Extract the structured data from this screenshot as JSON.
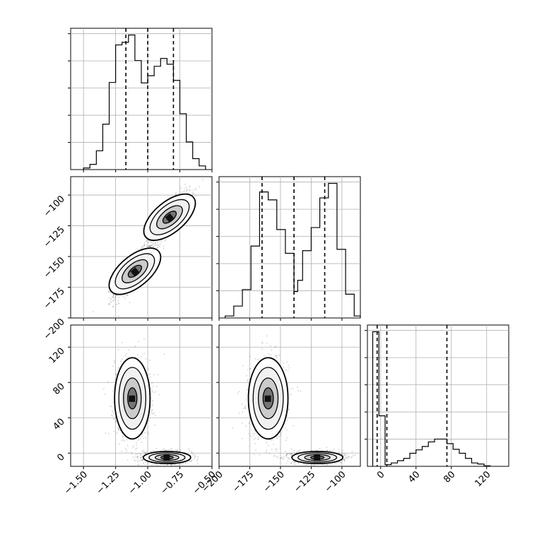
{
  "chart_data": [
    {
      "type": "histogram",
      "panel": "diag-1",
      "xlim": [
        -1.6,
        -0.5
      ],
      "x_ticks": [
        -1.5,
        -1.25,
        -1.0,
        -0.75,
        -0.5
      ],
      "quantile_lines": [
        -1.17,
        -1.0,
        -0.8
      ],
      "bin_edges": [
        -1.5,
        -1.45,
        -1.4,
        -1.35,
        -1.3,
        -1.25,
        -1.2,
        -1.15,
        -1.1,
        -1.05,
        -1.0,
        -0.95,
        -0.9,
        -0.85,
        -0.8,
        -0.75,
        -0.7,
        -0.65,
        -0.6,
        -0.55
      ],
      "counts": [
        3,
        10,
        36,
        87,
        167,
        239,
        244,
        258,
        209,
        166,
        180,
        198,
        213,
        202,
        171,
        107,
        53,
        21,
        7
      ]
    },
    {
      "type": "histogram",
      "panel": "diag-2",
      "xlim": [
        -200,
        -85
      ],
      "x_ticks": [
        -200,
        -175,
        -150,
        -125,
        -100
      ],
      "quantile_lines": [
        -165,
        -139,
        -114
      ],
      "bin_edges": [
        -195,
        -188,
        -181,
        -174,
        -167,
        -160,
        -153,
        -146,
        -139,
        -136,
        -132,
        -125,
        -118,
        -111,
        -104,
        -97,
        -90,
        -85
      ],
      "counts": [
        3,
        18,
        43,
        109,
        191,
        179,
        134,
        98,
        40,
        57,
        102,
        137,
        182,
        204,
        104,
        36,
        3
      ]
    },
    {
      "type": "histogram",
      "panel": "diag-3",
      "xlim": [
        -15,
        145
      ],
      "x_ticks": [
        0,
        40,
        80,
        120
      ],
      "quantile_lines": [
        -4,
        7,
        75
      ],
      "bin_edges": [
        -9,
        -2,
        5,
        12,
        19,
        26,
        33,
        40,
        47,
        54,
        61,
        68,
        75,
        82,
        89,
        96,
        103,
        110,
        117,
        124
      ],
      "counts": [
        237,
        89,
        3,
        6,
        10,
        14,
        23,
        29,
        35,
        43,
        48,
        48,
        40,
        30,
        23,
        14,
        6,
        4,
        1
      ]
    },
    {
      "type": "scatter",
      "panel": "lower-21",
      "x_param": 1,
      "y_param": 2,
      "xlim": [
        -1.6,
        -0.5
      ],
      "ylim": [
        -200,
        -85
      ],
      "y_ticks": [
        -100,
        -125,
        -150,
        -175,
        -200
      ],
      "clusters": [
        {
          "center": [
            -1.1,
            -162
          ],
          "spread": [
            0.07,
            9
          ]
        },
        {
          "center": [
            -0.83,
            -118
          ],
          "spread": [
            0.07,
            9
          ]
        }
      ]
    },
    {
      "type": "scatter",
      "panel": "lower-31",
      "x_param": 1,
      "y_param": 3,
      "xlim": [
        -1.6,
        -0.5
      ],
      "ylim": [
        -15,
        145
      ],
      "y_ticks": [
        0,
        40,
        80,
        120
      ],
      "x_ticks": [
        -1.5,
        -1.25,
        -1.0,
        -0.75,
        -0.5
      ],
      "clusters": [
        {
          "center": [
            -1.12,
            62
          ],
          "spread": [
            0.06,
            20
          ]
        },
        {
          "center": [
            -0.85,
            -5
          ],
          "spread": [
            0.08,
            3
          ]
        }
      ]
    },
    {
      "type": "scatter",
      "panel": "lower-32",
      "x_param": 2,
      "y_param": 3,
      "xlim": [
        -200,
        -85
      ],
      "ylim": [
        -15,
        145
      ],
      "x_ticks": [
        -200,
        -175,
        -150,
        -125,
        -100
      ],
      "clusters": [
        {
          "center": [
            -160,
            62
          ],
          "spread": [
            7,
            20
          ]
        },
        {
          "center": [
            -120,
            -5
          ],
          "spread": [
            9,
            3
          ]
        }
      ]
    }
  ],
  "axis_labels": {
    "p1_ticks": [
      "−1.50",
      "−1.25",
      "−1.00",
      "−0.75",
      "−0.50"
    ],
    "p2_ticks": [
      "−200",
      "−175",
      "−150",
      "−125",
      "−100"
    ],
    "p3_ticks": [
      "0",
      "40",
      "80",
      "120"
    ]
  },
  "colors": {
    "hist_line": "#000000",
    "grid": "#b0b0b0",
    "points": "#000000",
    "frame": "#000000"
  }
}
